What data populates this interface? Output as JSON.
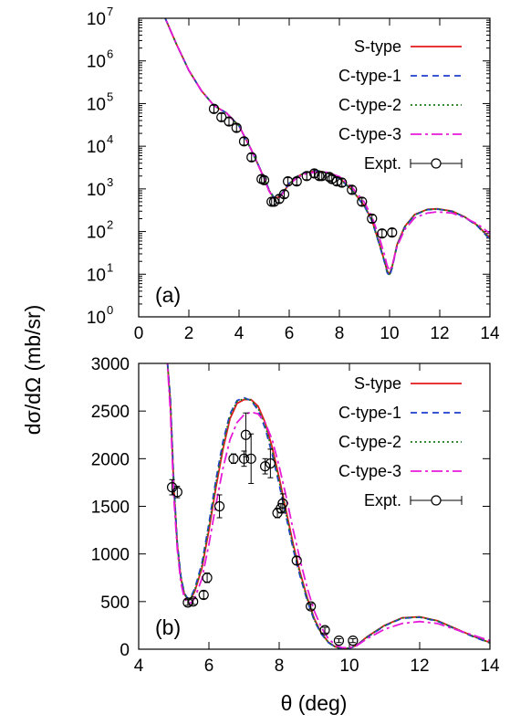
{
  "figure": {
    "ylabel": "dσ/dΩ (mb/sr)",
    "xlabel": "θ (deg)"
  },
  "series_style": [
    {
      "name": "S-type",
      "color": "#e41a1c",
      "dash": ""
    },
    {
      "name": "C-type-1",
      "color": "#1f3fcf",
      "dash": "7,5"
    },
    {
      "name": "C-type-2",
      "color": "#1a7a1a",
      "dash": "2,3"
    },
    {
      "name": "C-type-3",
      "color": "#e61ad9",
      "dash": "12,4,3,4"
    }
  ],
  "expt_label": "Expt.",
  "chart_data": [
    {
      "type": "line",
      "panel_label": "(a)",
      "yscale": "log",
      "xlim": [
        0,
        14
      ],
      "ylim": [
        1,
        10000000
      ],
      "xticks": [
        0,
        2,
        4,
        6,
        8,
        10,
        12,
        14
      ],
      "yticks": [
        {
          "v": 1,
          "exp": "0"
        },
        {
          "v": 10,
          "exp": "1"
        },
        {
          "v": 100,
          "exp": "2"
        },
        {
          "v": 1000,
          "exp": "3"
        },
        {
          "v": 10000,
          "exp": "4"
        },
        {
          "v": 100000,
          "exp": "5"
        },
        {
          "v": 1000000,
          "exp": "6"
        },
        {
          "v": 10000000,
          "exp": "7"
        }
      ],
      "legend": "top-right",
      "series": [
        {
          "name": "S-type",
          "x": [
            0.5,
            1.0,
            1.5,
            2.0,
            2.5,
            3.0,
            3.5,
            4.0,
            4.5,
            5.0,
            5.2,
            5.4,
            5.6,
            5.8,
            6.0,
            6.3,
            6.6,
            7.0,
            7.2,
            7.5,
            8.0,
            8.5,
            9.0,
            9.3,
            9.6,
            9.8,
            9.9,
            10.0,
            10.1,
            10.3,
            10.6,
            11.0,
            11.5,
            11.9,
            12.5,
            13.0,
            13.5,
            14.0
          ],
          "y": [
            50000000,
            12000000,
            2500000,
            600000,
            200000,
            90000,
            60000,
            30000,
            8000,
            1800,
            900,
            600,
            650,
            900,
            1300,
            1900,
            2350,
            2600,
            2600,
            2400,
            1800,
            950,
            400,
            180,
            50,
            20,
            12,
            10,
            15,
            50,
            130,
            250,
            330,
            340,
            300,
            220,
            140,
            70
          ]
        },
        {
          "name": "C-type-1",
          "x": [
            0.5,
            1.0,
            1.5,
            2.0,
            2.5,
            3.0,
            3.5,
            4.0,
            4.5,
            5.0,
            5.2,
            5.4,
            5.6,
            5.8,
            6.0,
            6.3,
            6.6,
            7.0,
            7.2,
            7.5,
            8.0,
            8.5,
            9.0,
            9.3,
            9.6,
            9.8,
            9.9,
            10.0,
            10.1,
            10.3,
            10.6,
            11.0,
            11.5,
            11.9,
            12.5,
            13.0,
            13.5,
            14.0
          ],
          "y": [
            50000000,
            12000000,
            2500000,
            600000,
            200000,
            90000,
            60000,
            30000,
            8000,
            1850,
            950,
            620,
            660,
            920,
            1350,
            1950,
            2400,
            2620,
            2620,
            2350,
            1750,
            920,
            390,
            175,
            48,
            19,
            11,
            9,
            14,
            48,
            125,
            245,
            325,
            335,
            295,
            215,
            135,
            65
          ]
        },
        {
          "name": "C-type-2",
          "x": [
            0.5,
            1.0,
            1.5,
            2.0,
            2.5,
            3.0,
            3.5,
            4.0,
            4.5,
            5.0,
            5.2,
            5.4,
            5.6,
            5.8,
            6.0,
            6.3,
            6.6,
            7.0,
            7.2,
            7.5,
            8.0,
            8.5,
            9.0,
            9.3,
            9.6,
            9.8,
            9.9,
            10.0,
            10.1,
            10.3,
            10.6,
            11.0,
            11.5,
            11.9,
            12.5,
            13.0,
            13.5,
            14.0
          ],
          "y": [
            50000000,
            12000000,
            2500000,
            600000,
            200000,
            90000,
            60000,
            30000,
            8000,
            1820,
            920,
            610,
            655,
            910,
            1320,
            1920,
            2380,
            2610,
            2610,
            2380,
            1780,
            940,
            395,
            178,
            49,
            20,
            12,
            10,
            15,
            49,
            128,
            248,
            328,
            338,
            298,
            218,
            138,
            68
          ]
        },
        {
          "name": "C-type-3",
          "x": [
            0.5,
            1.0,
            1.5,
            2.0,
            2.5,
            3.0,
            3.5,
            4.0,
            4.5,
            5.0,
            5.2,
            5.4,
            5.6,
            5.8,
            6.0,
            6.3,
            6.6,
            7.0,
            7.2,
            7.5,
            8.0,
            8.5,
            9.0,
            9.3,
            9.6,
            9.8,
            9.9,
            10.0,
            10.1,
            10.3,
            10.6,
            11.0,
            11.5,
            11.9,
            12.5,
            13.0,
            13.5,
            14.0
          ],
          "y": [
            50000000,
            12000000,
            2500000,
            600000,
            200000,
            90000,
            60000,
            30000,
            8000,
            1750,
            880,
            580,
            620,
            860,
            1250,
            1800,
            2200,
            2450,
            2500,
            2450,
            1950,
            1100,
            480,
            220,
            70,
            28,
            16,
            12,
            16,
            45,
            110,
            210,
            270,
            290,
            270,
            210,
            150,
            90
          ]
        }
      ],
      "expt": {
        "name": "Expt.",
        "x": [
          3.0,
          3.3,
          3.6,
          3.9,
          4.2,
          4.5,
          4.9,
          5.0,
          5.3,
          5.4,
          5.6,
          5.8,
          5.95,
          6.3,
          6.7,
          7.0,
          7.2,
          7.3,
          7.6,
          7.7,
          7.9,
          8.1,
          8.5,
          8.9,
          9.3,
          9.7,
          10.1
        ],
        "y": [
          75000,
          48000,
          38000,
          27000,
          13000,
          5500,
          1700,
          1600,
          500,
          500,
          580,
          750,
          1500,
          1500,
          2000,
          2300,
          2000,
          2000,
          1900,
          1700,
          1500,
          1400,
          950,
          500,
          200,
          90,
          95
        ]
      }
    },
    {
      "type": "line",
      "panel_label": "(b)",
      "yscale": "linear",
      "xlim": [
        4,
        14
      ],
      "ylim": [
        0,
        3000
      ],
      "xticks": [
        4,
        6,
        8,
        10,
        12,
        14
      ],
      "yticks": [
        0,
        500,
        1000,
        1500,
        2000,
        2500,
        3000
      ],
      "legend": "top-right",
      "series": [
        {
          "name": "S-type",
          "x": [
            4.8,
            4.9,
            5.0,
            5.1,
            5.2,
            5.3,
            5.4,
            5.5,
            5.6,
            5.8,
            6.0,
            6.2,
            6.4,
            6.6,
            6.8,
            7.0,
            7.2,
            7.4,
            7.6,
            7.8,
            8.0,
            8.2,
            8.4,
            8.6,
            8.8,
            9.0,
            9.2,
            9.4,
            9.6,
            9.8,
            10.0,
            10.2,
            10.5,
            11.0,
            11.5,
            12.0,
            12.5,
            13.0,
            13.5,
            14.0
          ],
          "y": [
            3100,
            2600,
            1700,
            1100,
            750,
            580,
            520,
            540,
            610,
            850,
            1250,
            1700,
            2100,
            2420,
            2580,
            2620,
            2620,
            2550,
            2380,
            2120,
            1800,
            1450,
            1100,
            800,
            540,
            320,
            170,
            75,
            25,
            5,
            10,
            40,
            130,
            250,
            330,
            340,
            300,
            220,
            140,
            70
          ]
        },
        {
          "name": "C-type-1",
          "x": [
            4.8,
            4.9,
            5.0,
            5.1,
            5.2,
            5.3,
            5.4,
            5.5,
            5.6,
            5.8,
            6.0,
            6.2,
            6.4,
            6.6,
            6.8,
            7.0,
            7.2,
            7.4,
            7.6,
            7.8,
            8.0,
            8.2,
            8.4,
            8.6,
            8.8,
            9.0,
            9.2,
            9.4,
            9.6,
            9.8,
            10.0,
            10.2,
            10.5,
            11.0,
            11.5,
            12.0,
            12.5,
            13.0,
            13.5,
            14.0
          ],
          "y": [
            3100,
            2650,
            1750,
            1120,
            770,
            590,
            530,
            560,
            640,
            900,
            1320,
            1780,
            2180,
            2470,
            2610,
            2640,
            2610,
            2510,
            2320,
            2050,
            1730,
            1390,
            1050,
            760,
            510,
            300,
            160,
            70,
            22,
            4,
            9,
            38,
            125,
            245,
            325,
            335,
            295,
            215,
            135,
            65
          ]
        },
        {
          "name": "C-type-2",
          "x": [
            4.8,
            4.9,
            5.0,
            5.1,
            5.2,
            5.3,
            5.4,
            5.5,
            5.6,
            5.8,
            6.0,
            6.2,
            6.4,
            6.6,
            6.8,
            7.0,
            7.2,
            7.4,
            7.6,
            7.8,
            8.0,
            8.2,
            8.4,
            8.6,
            8.8,
            9.0,
            9.2,
            9.4,
            9.6,
            9.8,
            10.0,
            10.2,
            10.5,
            11.0,
            11.5,
            12.0,
            12.5,
            13.0,
            13.5,
            14.0
          ],
          "y": [
            3100,
            2620,
            1720,
            1110,
            760,
            585,
            525,
            550,
            625,
            875,
            1290,
            1740,
            2140,
            2450,
            2600,
            2630,
            2615,
            2530,
            2350,
            2085,
            1765,
            1420,
            1075,
            780,
            525,
            310,
            165,
            72,
            23,
            5,
            10,
            39,
            128,
            248,
            328,
            338,
            298,
            218,
            138,
            68
          ]
        },
        {
          "name": "C-type-3",
          "x": [
            4.8,
            4.9,
            5.0,
            5.1,
            5.2,
            5.3,
            5.4,
            5.5,
            5.6,
            5.8,
            6.0,
            6.2,
            6.4,
            6.6,
            6.8,
            7.0,
            7.2,
            7.4,
            7.6,
            7.8,
            8.0,
            8.2,
            8.4,
            8.6,
            8.8,
            9.0,
            9.2,
            9.4,
            9.6,
            9.8,
            10.0,
            10.2,
            10.5,
            11.0,
            11.5,
            12.0,
            12.5,
            13.0,
            13.5,
            14.0
          ],
          "y": [
            3100,
            2500,
            1600,
            1050,
            700,
            540,
            480,
            490,
            540,
            740,
            1100,
            1520,
            1900,
            2200,
            2380,
            2460,
            2490,
            2470,
            2380,
            2200,
            1920,
            1600,
            1250,
            930,
            640,
            400,
            230,
            110,
            45,
            15,
            15,
            35,
            110,
            210,
            270,
            290,
            270,
            210,
            150,
            90
          ]
        }
      ],
      "expt": {
        "name": "Expt.",
        "x": [
          4.95,
          5.1,
          5.4,
          5.55,
          5.85,
          5.95,
          6.3,
          6.7,
          7.0,
          7.05,
          7.2,
          7.6,
          7.75,
          7.95,
          8.05,
          8.1,
          8.5,
          8.9,
          9.3,
          9.7,
          10.1
        ],
        "y": [
          1700,
          1650,
          490,
          500,
          570,
          750,
          1500,
          2000,
          2000,
          2250,
          2000,
          1920,
          1950,
          1430,
          1480,
          1530,
          930,
          450,
          200,
          90,
          90
        ],
        "err": [
          80,
          60,
          30,
          30,
          40,
          50,
          120,
          50,
          80,
          230,
          260,
          80,
          150,
          50,
          50,
          100,
          40,
          30,
          30,
          20,
          20
        ]
      }
    }
  ]
}
